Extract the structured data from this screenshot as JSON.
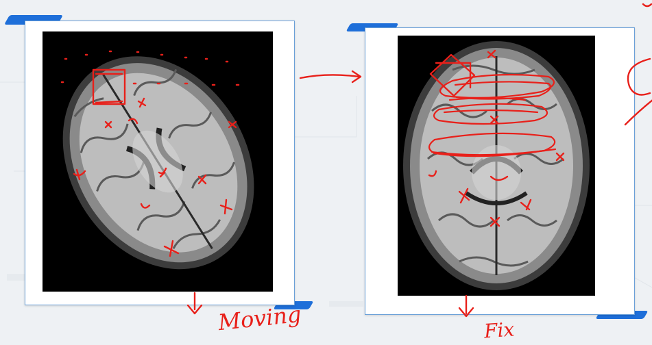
{
  "slide": {
    "moving_label": "Moving",
    "fixed_label": "Fix"
  },
  "colors": {
    "ink": "#e8201a",
    "accent": "#1e6fd9",
    "panel_border": "#6aa0d8"
  },
  "icons": {
    "arrow_right": "arrow-right-icon",
    "arrow_down": "arrow-down-icon",
    "cursor_arrow": "curved-arrow-icon"
  }
}
